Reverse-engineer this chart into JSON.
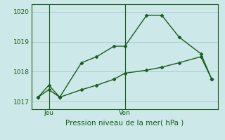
{
  "xlabel": "Pression niveau de la mer( hPa )",
  "bg_color": "#cce8e8",
  "grid_color": "#aacfcf",
  "line_color": "#1a5c1a",
  "spine_color": "#1a5c1a",
  "ylim": [
    1016.75,
    1020.25
  ],
  "yticks": [
    1017,
    1018,
    1019,
    1020
  ],
  "ytick_fontsize": 6.5,
  "xlabel_fontsize": 7.5,
  "xtick_fontsize": 6.5,
  "xtick_labels": [
    "Jeu",
    "Ven"
  ],
  "xtick_positions": [
    0.5,
    4.0
  ],
  "xlim": [
    -0.3,
    8.3
  ],
  "vline_positions": [
    0.5,
    4.0
  ],
  "line1_x": [
    0.0,
    0.5,
    1.0,
    2.0,
    2.7,
    3.5,
    4.0,
    5.0,
    5.7,
    6.5,
    7.5,
    8.0
  ],
  "line1_y": [
    1017.15,
    1017.55,
    1017.15,
    1018.3,
    1018.5,
    1018.85,
    1018.85,
    1019.88,
    1019.88,
    1019.15,
    1018.6,
    1017.75
  ],
  "line2_x": [
    0.0,
    0.5,
    1.0,
    2.0,
    2.7,
    3.5,
    4.0,
    5.0,
    5.7,
    6.5,
    7.5,
    8.0
  ],
  "line2_y": [
    1017.15,
    1017.4,
    1017.15,
    1017.4,
    1017.55,
    1017.75,
    1017.95,
    1018.05,
    1018.15,
    1018.3,
    1018.5,
    1017.75
  ]
}
